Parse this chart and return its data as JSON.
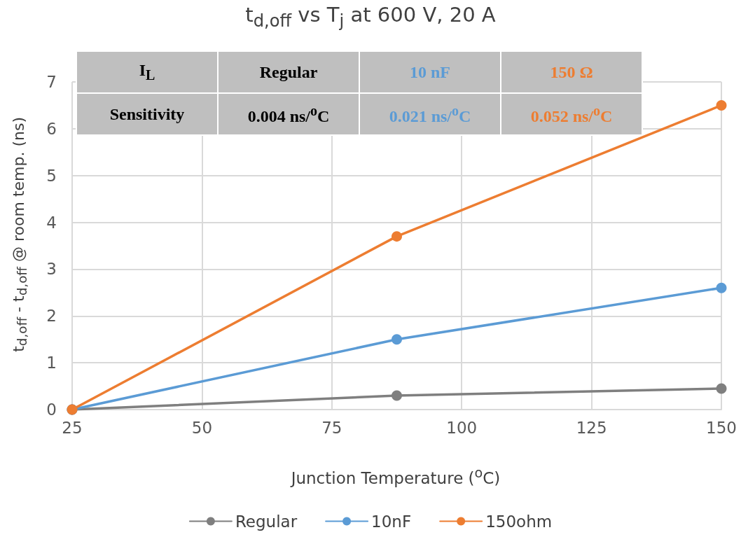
{
  "chart_data": {
    "type": "line",
    "title": "t$_{d,off}$ vs T$_{j}$ at 600 V, 20 A",
    "xlabel": "Junction Temperature ($^{o}$C)",
    "ylabel": "t$_{d,off}$ - t$_{d,off}$ @ room temp. (ns)",
    "x": [
      25,
      87.5,
      150
    ],
    "series": [
      {
        "name": "Regular",
        "color": "#7f7f7f",
        "values": [
          0,
          0.3,
          0.45
        ]
      },
      {
        "name": "10nF",
        "color": "#5b9bd5",
        "values": [
          0,
          1.5,
          2.6
        ]
      },
      {
        "name": "150ohm",
        "color": "#ed7d31",
        "values": [
          0,
          3.7,
          6.5
        ]
      }
    ],
    "xlim": [
      25,
      150
    ],
    "xticks": [
      25,
      50,
      75,
      100,
      125,
      150
    ],
    "ylim": [
      0,
      7
    ],
    "yticks": [
      0,
      1,
      2,
      3,
      4,
      5,
      6,
      7
    ],
    "grid": true,
    "legend": "bottom",
    "marker": "circle",
    "line_style": "solid",
    "annotations": [
      "I$_{L}$",
      "Regular",
      "10 nF",
      "150 Ω",
      "Sensitivity",
      "0.004 ns/$^{o}$C",
      "0.021 ns/$^{o}$C",
      "0.052 ns/$^{o}$C"
    ]
  }
}
